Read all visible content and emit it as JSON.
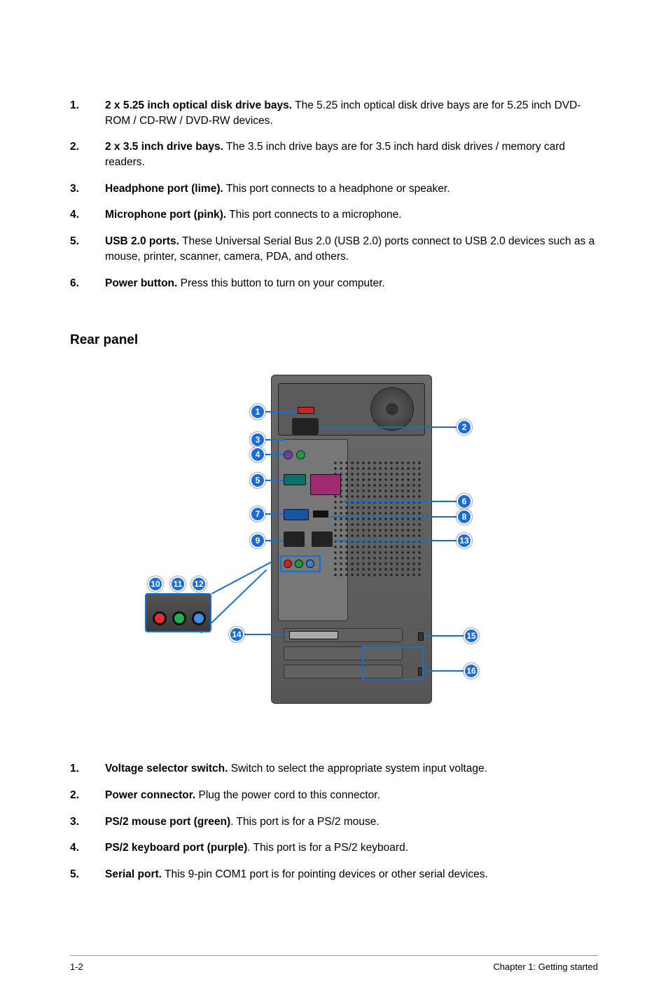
{
  "top_list": [
    {
      "num": "1.",
      "bold": "2 x 5.25 inch optical disk drive bays.",
      "rest": " The 5.25 inch optical disk drive bays are for 5.25 inch DVD-ROM / CD-RW / DVD-RW devices."
    },
    {
      "num": "2.",
      "bold": "2 x 3.5 inch drive bays.",
      "rest": " The 3.5 inch drive bays are for 3.5 inch hard disk drives / memory card readers."
    },
    {
      "num": "3.",
      "bold": "Headphone port (lime).",
      "rest": " This port connects to a headphone or speaker."
    },
    {
      "num": "4.",
      "bold": "Microphone port (pink).",
      "rest": " This port connects to a microphone."
    },
    {
      "num": "5.",
      "bold": "USB 2.0 ports.",
      "rest": " These Universal Serial Bus 2.0 (USB 2.0) ports connect to USB 2.0 devices such as a mouse, printer, scanner, camera, PDA, and others."
    },
    {
      "num": "6.",
      "bold": "Power button.",
      "rest": " Press this button to turn on your computer."
    }
  ],
  "section_heading": "Rear panel",
  "callouts": {
    "c1": "1",
    "c2": "2",
    "c3": "3",
    "c4": "4",
    "c5": "5",
    "c6": "6",
    "c7": "7",
    "c8": "8",
    "c9": "9",
    "c10": "10",
    "c11": "11",
    "c12": "12",
    "c13": "13",
    "c14": "14",
    "c15": "15",
    "c16": "16"
  },
  "bottom_list": [
    {
      "num": "1.",
      "bold": "Voltage selector switch.",
      "rest": " Switch to select the appropriate system input voltage."
    },
    {
      "num": "2.",
      "bold": "Power connector.",
      "rest": " Plug the power cord to this connector."
    },
    {
      "num": "3.",
      "bold": "PS/2 mouse port (green)",
      "rest": ". This port is for a PS/2 mouse."
    },
    {
      "num": "4.",
      "bold": "PS/2 keyboard port (purple)",
      "rest": ". This port is for a PS/2 keyboard."
    },
    {
      "num": "5.",
      "bold": "Serial port.",
      "rest": " This 9-pin COM1 port is for pointing devices or other serial devices."
    }
  ],
  "footer": {
    "left": "1-2",
    "right": "Chapter 1: Getting started"
  }
}
